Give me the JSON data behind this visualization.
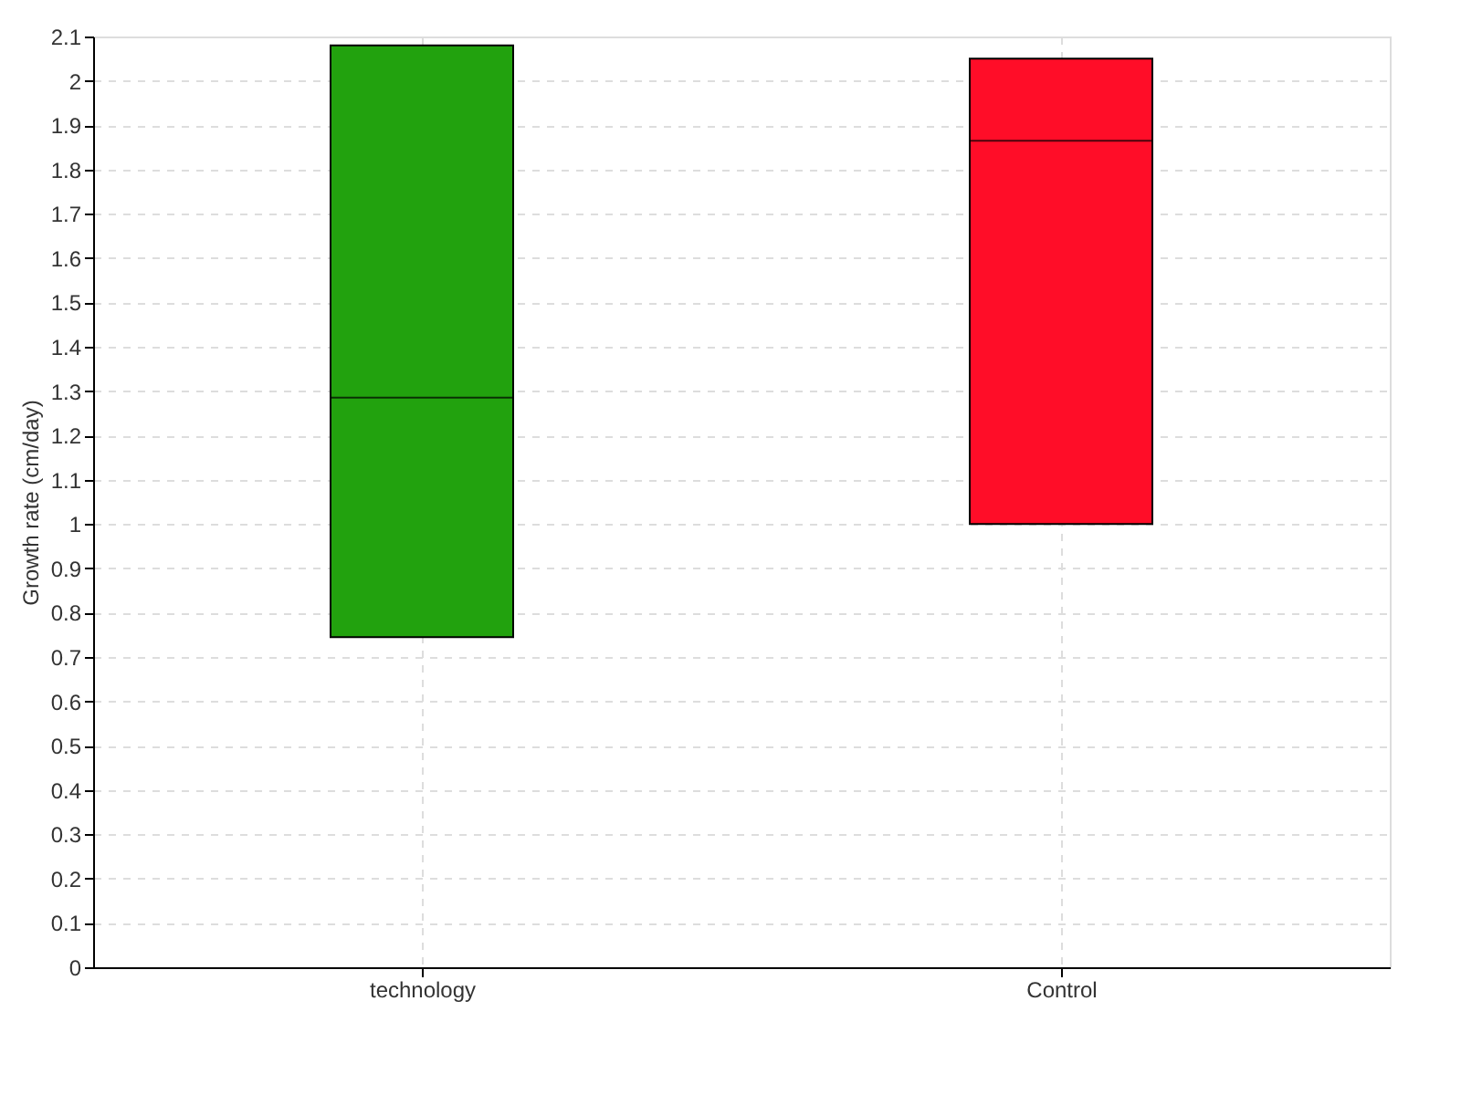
{
  "chart_data": {
    "type": "box",
    "ylabel": "Growth rate (cm/day)",
    "categories": [
      "technology",
      "Control"
    ],
    "boxes": [
      {
        "low": 0.745,
        "q1": 0.745,
        "median": 1.285,
        "q3": 2.08,
        "high": 2.08
      },
      {
        "low": 1.0,
        "q1": 1.0,
        "median": 1.865,
        "q3": 2.05,
        "high": 2.05
      }
    ],
    "colors": [
      "#22a20e",
      "#ff0d28"
    ],
    "ylim": [
      0,
      2.1
    ],
    "yticks": [
      0,
      0.1,
      0.2,
      0.3,
      0.4,
      0.5,
      0.6,
      0.7,
      0.8,
      0.9,
      1,
      1.1,
      1.2,
      1.3,
      1.4,
      1.5,
      1.6,
      1.7,
      1.8,
      1.9,
      2,
      2.1
    ],
    "grid": true,
    "legend": false
  }
}
